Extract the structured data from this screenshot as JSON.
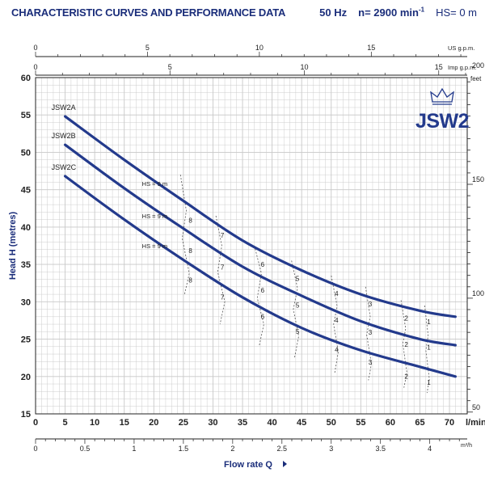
{
  "header": {
    "title": "CHARACTERISTIC CURVES AND PERFORMANCE DATA",
    "freq": "50 Hz",
    "speed": "n= 2900 min",
    "speed_exp": "-1",
    "hs": "HS= 0 m"
  },
  "logo": {
    "text": "JSW2",
    "crown": "crown-icon"
  },
  "colors": {
    "curve": "#233a8c",
    "grid": "#c8c8c8",
    "text": "#1a2d7a",
    "axis": "#222222"
  },
  "chart_data": {
    "type": "line",
    "title": "CHARACTERISTIC CURVES AND PERFORMANCE DATA",
    "xlabel": "Flow rate Q",
    "x_unit": "l/min",
    "ylabel": "Head H (metres)",
    "y2_unit": "feet",
    "xlim": [
      0,
      73
    ],
    "ylim": [
      15,
      60
    ],
    "x_ticks": [
      0,
      5,
      10,
      15,
      20,
      25,
      30,
      35,
      40,
      45,
      50,
      55,
      60,
      65,
      70
    ],
    "y_ticks": [
      15,
      20,
      25,
      30,
      35,
      40,
      45,
      50,
      55,
      60
    ],
    "grid": true,
    "secondary_axes": {
      "m3h": {
        "unit": "m³/h",
        "ticks": [
          0,
          0.5,
          1,
          1.5,
          2,
          2.5,
          3,
          3.5,
          4
        ],
        "factor": 0.06
      },
      "us_gpm": {
        "unit": "US g.p.m.",
        "ticks": [
          0,
          5,
          10,
          15
        ],
        "factor": 0.2642
      },
      "imp_gpm": {
        "unit": "Imp g.p.m.",
        "ticks": [
          0,
          5,
          10,
          15
        ],
        "factor": 0.22
      },
      "feet": {
        "unit": "feet",
        "ticks": [
          50,
          100,
          150,
          200
        ],
        "factor": 3.2808
      }
    },
    "series": [
      {
        "name": "JSW2A",
        "x": [
          5,
          15,
          25,
          35,
          45,
          55,
          65,
          71
        ],
        "y": [
          54.8,
          49,
          43.5,
          38.2,
          34.2,
          31,
          28.8,
          28
        ]
      },
      {
        "name": "JSW2B",
        "x": [
          5,
          15,
          25,
          35,
          45,
          55,
          65,
          71
        ],
        "y": [
          51,
          45.2,
          39.8,
          34.7,
          30.8,
          27.4,
          25,
          24.2
        ]
      },
      {
        "name": "JSW2C",
        "x": [
          5,
          15,
          25,
          35,
          45,
          55,
          65,
          71
        ],
        "y": [
          46.8,
          41,
          35.6,
          30.6,
          26.5,
          23.5,
          21.3,
          20
        ]
      }
    ],
    "hs_labels": [
      {
        "text": "HS = 9 m",
        "x": 18,
        "y": 45.5
      },
      {
        "text": "HS = 9 m",
        "x": 18,
        "y": 41.2
      },
      {
        "text": "HS = 9 m",
        "x": 18,
        "y": 37.2
      }
    ],
    "suction_lines": [
      {
        "label": "8",
        "x": [
          24.5,
          25.5,
          24.8,
          26,
          25.2
        ],
        "y": [
          47,
          42.2,
          38.5,
          33.8,
          31
        ],
        "labels_y": [
          40.6,
          36.5,
          32.6
        ],
        "label_x": 26.2
      },
      {
        "label": "7",
        "x": [
          30.5,
          31.5,
          30.8,
          32,
          31.2
        ],
        "y": [
          41.5,
          37.5,
          34,
          30,
          27
        ],
        "labels_y": [
          38.6,
          34.3,
          30.3
        ],
        "label_x": 31.6
      },
      {
        "label": "6",
        "x": [
          37,
          38.2,
          37.5,
          38.6,
          37.8
        ],
        "y": [
          37.5,
          33.8,
          30.5,
          27,
          24
        ],
        "labels_y": [
          34.7,
          31.2,
          27.7
        ],
        "label_x": 38.4
      },
      {
        "label": "5",
        "x": [
          43.3,
          44.3,
          43.6,
          44.5,
          43.8
        ],
        "y": [
          35.5,
          31.8,
          29,
          25.4,
          22.5
        ],
        "labels_y": [
          32.8,
          29.2,
          25.7
        ],
        "label_x": 44.3
      },
      {
        "label": "4",
        "x": [
          50,
          51,
          50.4,
          51.2,
          50.6
        ],
        "y": [
          33.5,
          29.4,
          27,
          23.3,
          20.5
        ],
        "labels_y": [
          30.8,
          27.2,
          23.3
        ],
        "label_x": 50.9
      },
      {
        "label": "3",
        "x": [
          55.8,
          56.6,
          56,
          56.8,
          56.3
        ],
        "y": [
          32,
          28,
          25.6,
          21.7,
          19.5
        ],
        "labels_y": [
          29.4,
          25.6,
          21.6
        ],
        "label_x": 56.6
      },
      {
        "label": "2",
        "x": [
          61.8,
          62.6,
          62.1,
          62.8,
          62.3
        ],
        "y": [
          30.2,
          26.4,
          24.4,
          20.5,
          18.5
        ],
        "labels_y": [
          27.5,
          24,
          19.7
        ],
        "label_x": 62.7
      },
      {
        "label": "1",
        "x": [
          65.8,
          66.4,
          66,
          66.6,
          66.2
        ],
        "y": [
          29.5,
          25.5,
          23.5,
          19.6,
          17.8
        ],
        "labels_y": [
          27,
          23.6,
          18.9
        ],
        "label_x": 66.5
      }
    ]
  }
}
